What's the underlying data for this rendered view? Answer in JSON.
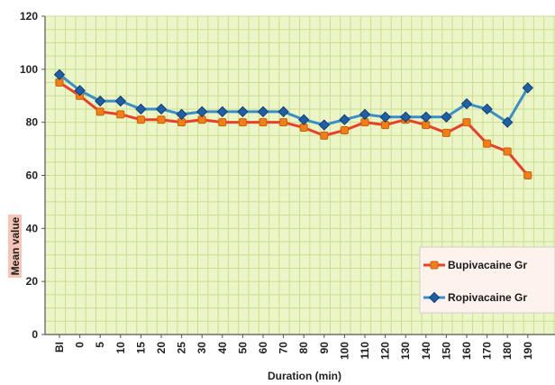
{
  "chart_data": {
    "type": "line",
    "title": "",
    "xlabel": "Duration (min)",
    "ylabel": "Mean value",
    "ylim": [
      0,
      120
    ],
    "yticks": [
      0,
      20,
      40,
      60,
      80,
      100,
      120
    ],
    "grid": true,
    "legend_position": "bottom-right",
    "categories": [
      "BI",
      "0",
      "5",
      "10",
      "15",
      "20",
      "25",
      "30",
      "40",
      "50",
      "60",
      "70",
      "80",
      "90",
      "100",
      "110",
      "120",
      "130",
      "140",
      "150",
      "160",
      "170",
      "180",
      "190"
    ],
    "series": [
      {
        "name": "Bupivacaine Gr",
        "color": "#f07f17",
        "line_color": "#e8402a",
        "values": [
          95,
          90,
          84,
          83,
          81,
          81,
          80,
          81,
          80,
          80,
          80,
          80,
          78,
          75,
          77,
          80,
          79,
          81,
          79,
          76,
          80,
          72,
          69,
          60
        ]
      },
      {
        "name": "Ropivacaine Gr",
        "color": "#1f5fa8",
        "line_color": "#3a8fc8",
        "values": [
          98,
          92,
          88,
          88,
          85,
          85,
          83,
          84,
          84,
          84,
          84,
          84,
          81,
          79,
          81,
          83,
          82,
          82,
          82,
          82,
          87,
          85,
          80,
          93
        ]
      }
    ]
  }
}
